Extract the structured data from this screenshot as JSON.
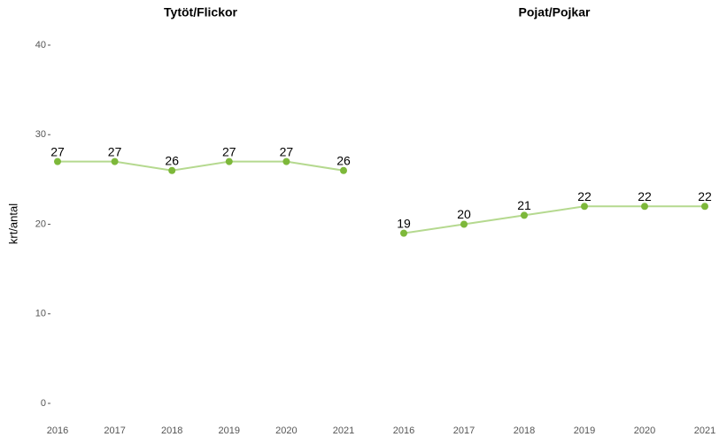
{
  "chart_data": [
    {
      "type": "line",
      "title": "Tytöt/Flickor",
      "ylabel": "krt/antal",
      "categories": [
        "2016",
        "2017",
        "2018",
        "2019",
        "2020",
        "2021"
      ],
      "values": [
        27,
        27,
        26,
        27,
        27,
        26
      ],
      "line_color": "#b5d98f",
      "point_color": "#7db83a",
      "ylim": [
        0,
        40
      ],
      "yticks": [
        0,
        10,
        20,
        30,
        40
      ]
    },
    {
      "type": "line",
      "title": "Pojat/Pojkar",
      "categories": [
        "2016",
        "2017",
        "2018",
        "2019",
        "2020",
        "2021"
      ],
      "values": [
        19,
        20,
        21,
        22,
        22,
        22
      ],
      "line_color": "#b5d98f",
      "point_color": "#7db83a",
      "ylim": [
        0,
        40
      ]
    }
  ]
}
